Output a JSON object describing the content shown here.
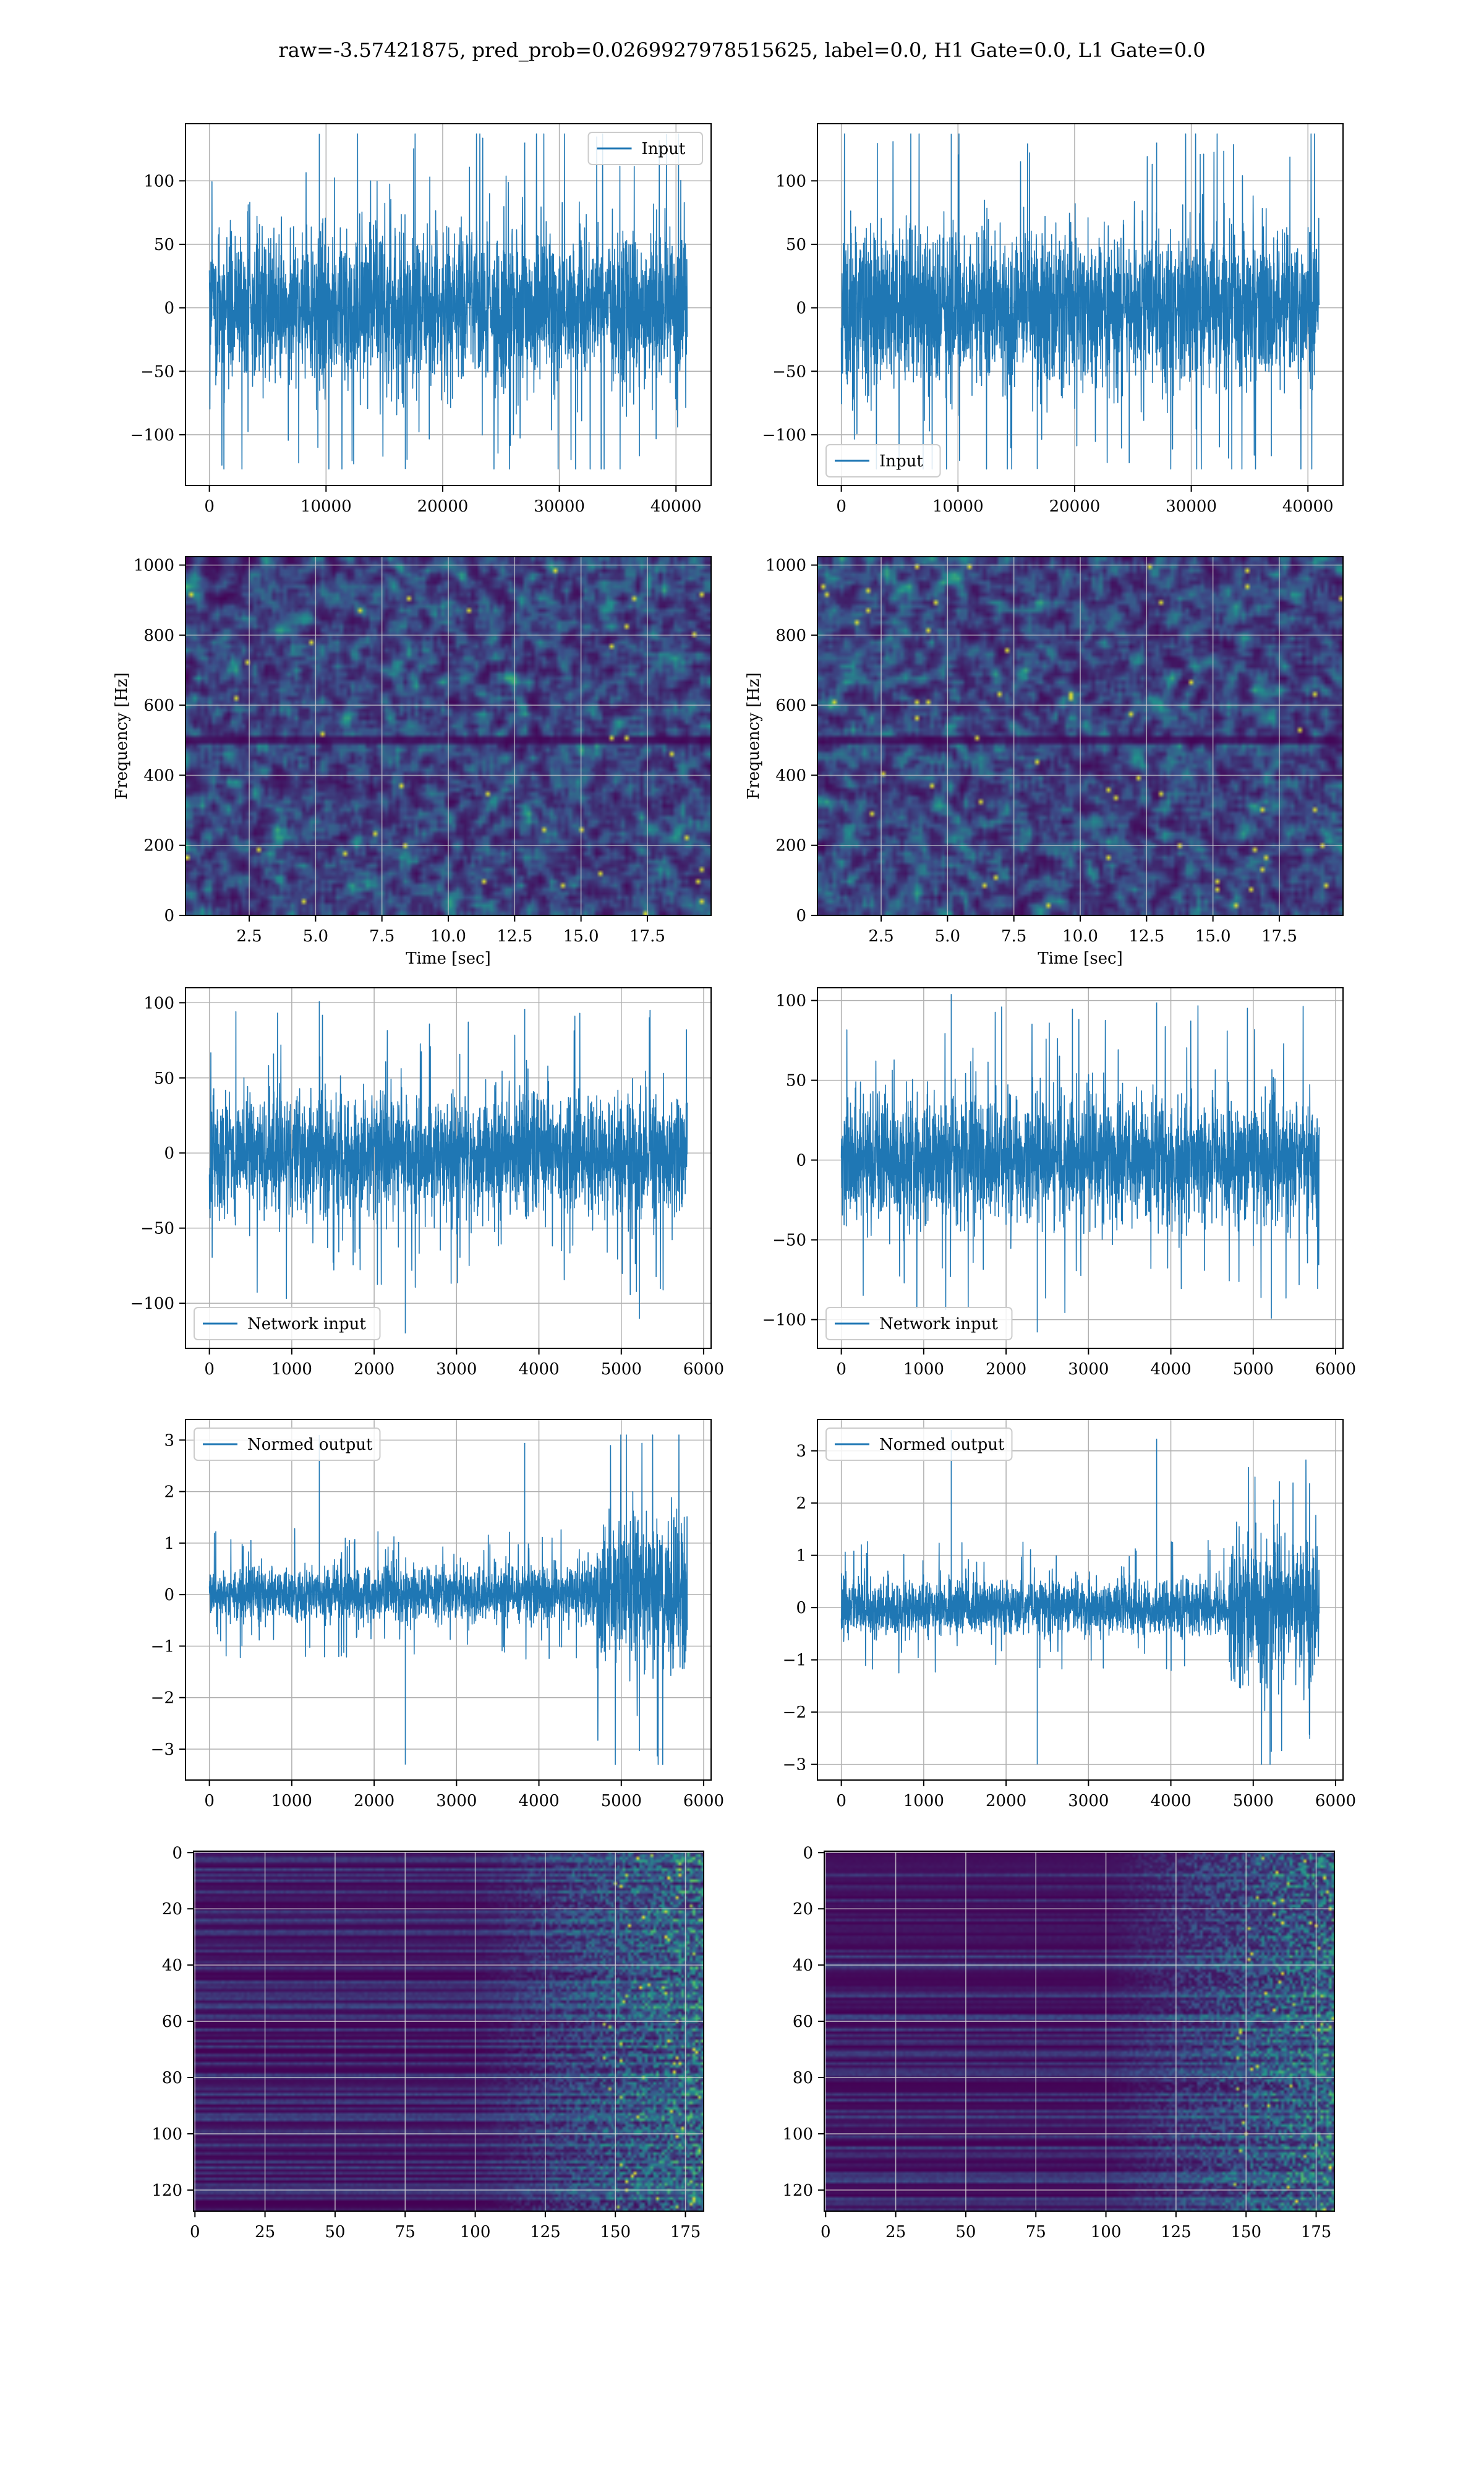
{
  "figure": {
    "title": "raw=-3.57421875, pred_prob=0.0269927978515625, label=0.0, H1 Gate=0.0, L1 Gate=0.0",
    "colors": {
      "line": "#1f77b4",
      "grid": "#b0b0b0",
      "viridis_dark": "#440154",
      "viridis_mid": "#21918c",
      "viridis_bright": "#fde725"
    }
  },
  "chart_data": [
    {
      "id": "r1c1",
      "type": "line",
      "series": [
        {
          "name": "Input"
        }
      ],
      "xlim": [
        -2048,
        43008
      ],
      "ylim": [
        -140,
        145
      ],
      "xticks": [
        0,
        10000,
        20000,
        30000,
        40000
      ],
      "yticks": [
        -100,
        -50,
        0,
        50,
        100
      ],
      "x_end": 40960,
      "amplitude": {
        "core": 70,
        "max_pos": 137,
        "max_neg": -127
      },
      "legend": "top-right",
      "grid": true,
      "xlabel": "",
      "ylabel": ""
    },
    {
      "id": "r1c2",
      "type": "line",
      "series": [
        {
          "name": "Input"
        }
      ],
      "xlim": [
        -2048,
        43008
      ],
      "ylim": [
        -140,
        145
      ],
      "xticks": [
        0,
        10000,
        20000,
        30000,
        40000
      ],
      "yticks": [
        -100,
        -50,
        0,
        50,
        100
      ],
      "x_end": 40960,
      "amplitude": {
        "core": 72,
        "max_pos": 137,
        "max_neg": -127
      },
      "legend": "bottom-left",
      "grid": true,
      "xlabel": "",
      "ylabel": ""
    },
    {
      "id": "r2c1",
      "type": "heatmap",
      "xlim": [
        0.1,
        19.9
      ],
      "ylim": [
        0,
        1024
      ],
      "xticks": [
        2.5,
        5.0,
        7.5,
        10.0,
        12.5,
        15.0,
        17.5
      ],
      "yticks": [
        0,
        200,
        400,
        600,
        800,
        1000
      ],
      "xlabel": "Time [sec]",
      "ylabel": "Frequency [Hz]",
      "grid": true,
      "colormap": "viridis"
    },
    {
      "id": "r2c2",
      "type": "heatmap",
      "xlim": [
        0.1,
        19.9
      ],
      "ylim": [
        0,
        1024
      ],
      "xticks": [
        2.5,
        5.0,
        7.5,
        10.0,
        12.5,
        15.0,
        17.5
      ],
      "yticks": [
        0,
        200,
        400,
        600,
        800,
        1000
      ],
      "xlabel": "Time [sec]",
      "ylabel": "Frequency [Hz]",
      "grid": true,
      "colormap": "viridis"
    },
    {
      "id": "r3c1",
      "type": "line",
      "series": [
        {
          "name": "Network input"
        }
      ],
      "xlim": [
        -290,
        6090
      ],
      "ylim": [
        -130,
        110
      ],
      "xticks": [
        0,
        1000,
        2000,
        3000,
        4000,
        5000,
        6000
      ],
      "yticks": [
        -100,
        -50,
        0,
        50,
        100
      ],
      "x_end": 5800,
      "amplitude": {
        "core": 45,
        "max_pos": 101,
        "max_neg": -120
      },
      "legend": "bottom-left",
      "grid": true,
      "xlabel": "",
      "ylabel": ""
    },
    {
      "id": "r3c2",
      "type": "line",
      "series": [
        {
          "name": "Network input"
        }
      ],
      "xlim": [
        -290,
        6090
      ],
      "ylim": [
        -118,
        108
      ],
      "xticks": [
        0,
        1000,
        2000,
        3000,
        4000,
        5000,
        6000
      ],
      "yticks": [
        -100,
        -50,
        0,
        50,
        100
      ],
      "x_end": 5800,
      "amplitude": {
        "core": 45,
        "max_pos": 104,
        "max_neg": -108
      },
      "legend": "bottom-left",
      "grid": true,
      "xlabel": "",
      "ylabel": ""
    },
    {
      "id": "r4c1",
      "type": "line",
      "series": [
        {
          "name": "Normed output"
        }
      ],
      "xlim": [
        -290,
        6090
      ],
      "ylim": [
        -3.6,
        3.4
      ],
      "xticks": [
        0,
        1000,
        2000,
        3000,
        4000,
        5000,
        6000
      ],
      "yticks": [
        -3,
        -2,
        -1,
        0,
        1,
        2,
        3
      ],
      "x_end": 5800,
      "burst_start": 4700,
      "amplitude": {
        "core": 0.6,
        "burst": 1.7,
        "max_pos": 3.1,
        "max_neg": -3.3
      },
      "legend": "top-left",
      "grid": true,
      "xlabel": "",
      "ylabel": ""
    },
    {
      "id": "r4c2",
      "type": "line",
      "series": [
        {
          "name": "Normed output"
        }
      ],
      "xlim": [
        -290,
        6090
      ],
      "ylim": [
        -3.3,
        3.6
      ],
      "xticks": [
        0,
        1000,
        2000,
        3000,
        4000,
        5000,
        6000
      ],
      "yticks": [
        -3,
        -2,
        -1,
        0,
        1,
        2,
        3
      ],
      "x_end": 5800,
      "burst_start": 4700,
      "amplitude": {
        "core": 0.6,
        "burst": 1.6,
        "max_pos": 3.4,
        "max_neg": -3.0
      },
      "legend": "top-left",
      "grid": true,
      "xlabel": "",
      "ylabel": ""
    },
    {
      "id": "r5c1",
      "type": "heatmap",
      "xlim": [
        -0.5,
        181.5
      ],
      "ylim": [
        127.5,
        -0.5
      ],
      "xticks": [
        0,
        25,
        50,
        75,
        100,
        125,
        150,
        175
      ],
      "yticks": [
        0,
        20,
        40,
        60,
        80,
        100,
        120
      ],
      "grid": true,
      "colormap": "viridis",
      "xlabel": "",
      "ylabel": ""
    },
    {
      "id": "r5c2",
      "type": "heatmap",
      "xlim": [
        -0.5,
        181.5
      ],
      "ylim": [
        127.5,
        -0.5
      ],
      "xticks": [
        0,
        25,
        50,
        75,
        100,
        125,
        150,
        175
      ],
      "yticks": [
        0,
        20,
        40,
        60,
        80,
        100,
        120
      ],
      "grid": true,
      "colormap": "viridis",
      "xlabel": "",
      "ylabel": ""
    }
  ]
}
